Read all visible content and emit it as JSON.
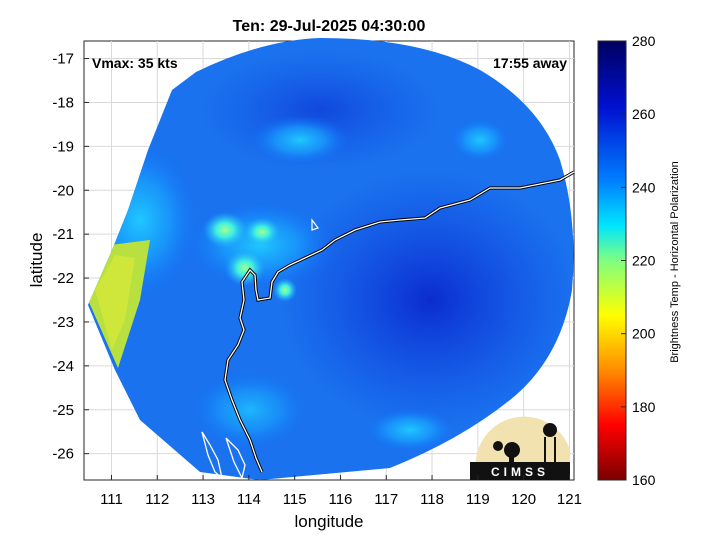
{
  "title": "Ten: 29-Jul-2025 04:30:00",
  "annotations": {
    "vmax": "Vmax: 35 kts",
    "away": "17:55 away"
  },
  "axes": {
    "xlabel": "longitude",
    "ylabel": "latitude",
    "xticks": [
      "111",
      "112",
      "113",
      "114",
      "115",
      "116",
      "117",
      "118",
      "119",
      "120",
      "121"
    ],
    "yticks": [
      "-17",
      "-18",
      "-19",
      "-20",
      "-21",
      "-22",
      "-23",
      "-24",
      "-25",
      "-26"
    ]
  },
  "colorbar": {
    "label": "Brightness Temp - Horizontal Polarization",
    "ticks": [
      "280",
      "260",
      "240",
      "220",
      "200",
      "180",
      "160"
    ],
    "range": [
      160,
      280
    ],
    "colors": [
      "#7a0000",
      "#ff0000",
      "#ff8c00",
      "#ffff00",
      "#7fff80",
      "#00e5ff",
      "#0080ff",
      "#0010d0",
      "#000060"
    ]
  },
  "chart_data": {
    "type": "heatmap",
    "title": "Ten: 29-Jul-2025 04:30:00",
    "xlabel": "longitude",
    "ylabel": "latitude",
    "xlim": [
      110.4,
      121.1
    ],
    "ylim": [
      -26.6,
      -16.6
    ],
    "value_range": [
      160,
      280
    ],
    "swath_center": [
      115.9,
      -21.3
    ],
    "swath_radius_deg": 5.1,
    "features": [
      {
        "lon": 116.5,
        "lat": -22.5,
        "tb": 268
      },
      {
        "lon": 113.2,
        "lat": -20.9,
        "tb": 232
      },
      {
        "lon": 114.0,
        "lat": -21.7,
        "tb": 238
      },
      {
        "lon": 111.0,
        "lat": -22.7,
        "tb": 212
      },
      {
        "lon": 119.2,
        "lat": -19.1,
        "tb": 238
      },
      {
        "lon": 114.4,
        "lat": -19.0,
        "tb": 245
      },
      {
        "lon": 116.9,
        "lat": -25.2,
        "tb": 250
      }
    ]
  },
  "logo": {
    "text": "CIMSS"
  }
}
